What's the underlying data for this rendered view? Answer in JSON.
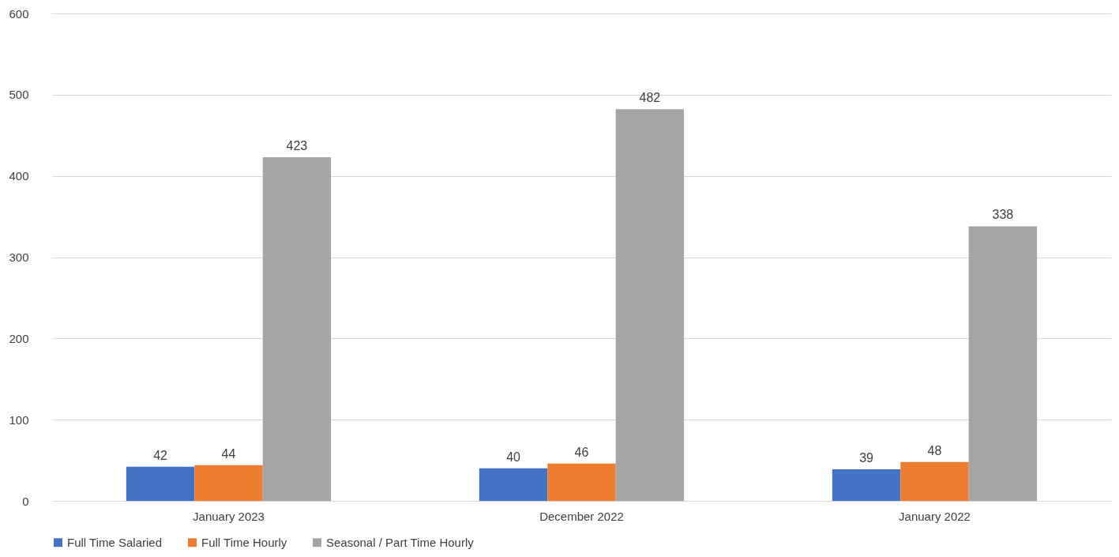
{
  "chart_data": {
    "type": "bar",
    "categories": [
      "January 2023",
      "December 2022",
      "January 2022"
    ],
    "series": [
      {
        "name": "Full Time Salaried",
        "color": "#4472c4",
        "values": [
          42,
          40,
          39
        ]
      },
      {
        "name": "Full Time Hourly",
        "color": "#ed7d31",
        "values": [
          44,
          46,
          48
        ]
      },
      {
        "name": "Seasonal / Part Time Hourly",
        "color": "#a5a5a5",
        "values": [
          423,
          482,
          338
        ]
      }
    ],
    "ylim": [
      0,
      600
    ],
    "yticks": [
      0,
      100,
      200,
      300,
      400,
      500,
      600
    ],
    "grid": "y",
    "legend": "bottom",
    "data_labels": true
  }
}
